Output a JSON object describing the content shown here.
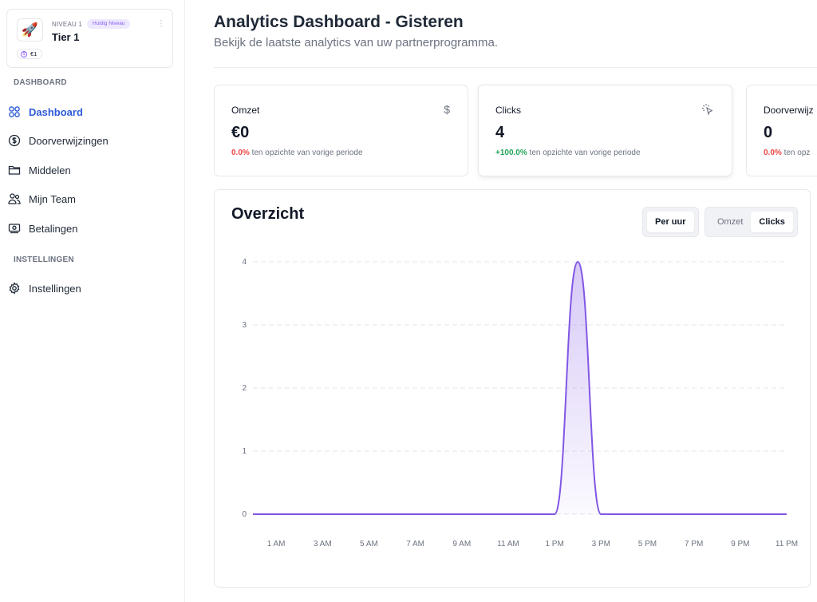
{
  "sidebar": {
    "tier": {
      "level": "NIVEAU 1",
      "badge": "Huidig Niveau",
      "name": "Tier 1",
      "amount": "€1",
      "avatar_icon": "rocket-icon"
    },
    "sections": [
      {
        "label": "DASHBOARD"
      },
      {
        "label": "INSTELLINGEN"
      }
    ],
    "items": [
      {
        "label": "Dashboard",
        "icon": "grid-icon",
        "active": true
      },
      {
        "label": "Doorverwijzingen",
        "icon": "dollar-circle-icon",
        "active": false
      },
      {
        "label": "Middelen",
        "icon": "folder-icon",
        "active": false
      },
      {
        "label": "Mijn Team",
        "icon": "users-icon",
        "active": false
      },
      {
        "label": "Betalingen",
        "icon": "banknote-icon",
        "active": false
      },
      {
        "label": "Instellingen",
        "icon": "gear-icon",
        "active": false
      }
    ]
  },
  "header": {
    "title": "Analytics Dashboard - Gisteren",
    "subtitle": "Bekijk de laatste analytics van uw partnerprogramma."
  },
  "stats": [
    {
      "label": "Omzet",
      "value": "€0",
      "change": "0.0%",
      "change_note": "ten opzichte van vorige periode",
      "trend": "negative",
      "icon": "dollar-icon"
    },
    {
      "label": "Clicks",
      "value": "4",
      "change": "+100.0%",
      "change_note": "ten opzichte van vorige periode",
      "trend": "positive",
      "icon": "pointer-click-icon"
    },
    {
      "label": "Doorverwijz",
      "value": "0",
      "change": "0.0%",
      "change_note": "ten opz",
      "trend": "negative",
      "icon": ""
    }
  ],
  "overview": {
    "title": "Overzicht",
    "interval_button": "Per uur",
    "metric_options": [
      "Omzet",
      "Clicks"
    ],
    "selected_metric": "Clicks"
  },
  "colors": {
    "accent": "#2f5bd8",
    "line": "#8257e5",
    "positive": "#22a55a",
    "negative": "#ef4444"
  },
  "chart_data": {
    "type": "area",
    "title": "Overzicht",
    "xlabel": "",
    "ylabel": "",
    "x": [
      "12 AM",
      "1 AM",
      "2 AM",
      "3 AM",
      "4 AM",
      "5 AM",
      "6 AM",
      "7 AM",
      "8 AM",
      "9 AM",
      "10 AM",
      "11 AM",
      "12 PM",
      "1 PM",
      "2 PM",
      "3 PM",
      "4 PM",
      "5 PM",
      "6 PM",
      "7 PM",
      "8 PM",
      "9 PM",
      "10 PM",
      "11 PM"
    ],
    "series": [
      {
        "name": "Clicks",
        "values": [
          0,
          0,
          0,
          0,
          0,
          0,
          0,
          0,
          0,
          0,
          0,
          0,
          0,
          0,
          4,
          0,
          0,
          0,
          0,
          0,
          0,
          0,
          0,
          0
        ]
      }
    ],
    "x_tick_labels": [
      "1 AM",
      "3 AM",
      "5 AM",
      "7 AM",
      "9 AM",
      "11 AM",
      "1 PM",
      "3 PM",
      "5 PM",
      "7 PM",
      "9 PM",
      "11 PM"
    ],
    "y_ticks": [
      0,
      1,
      2,
      3,
      4
    ],
    "ylim": [
      0,
      4
    ],
    "grid": true,
    "legend": "none"
  }
}
